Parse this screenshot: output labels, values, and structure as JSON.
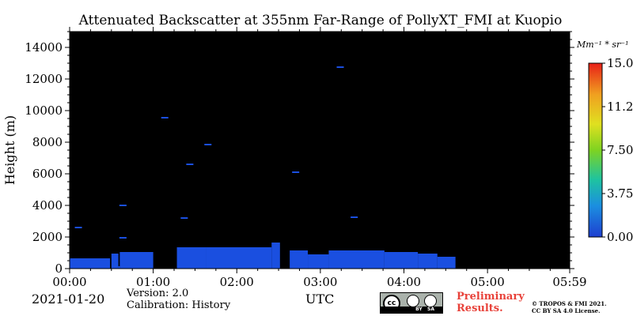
{
  "chart_data": {
    "type": "heatmap",
    "title": "Attenuated Backscatter at 355nm Far-Range of PollyXT_FMI at Kuopio",
    "xlabel": "UTC",
    "ylabel": "Height (m)",
    "x_ticks": [
      "00:00",
      "01:00",
      "02:00",
      "03:00",
      "04:00",
      "05:00",
      "05:59"
    ],
    "x_range_minutes": [
      0,
      359
    ],
    "y_ticks": [
      0,
      2000,
      4000,
      6000,
      8000,
      10000,
      12000,
      14000
    ],
    "ylim": [
      0,
      15000
    ],
    "colorbar": {
      "unit_label": "Mm⁻¹ * sr⁻¹",
      "range": [
        0.0,
        15.0
      ],
      "ticks": [
        "0.00",
        "3.75",
        "7.50",
        "11.25",
        "15.00"
      ]
    },
    "background_color": "#000000",
    "signal_color": "#1a4fe0",
    "aerosol_layers": [
      {
        "start": "00:00",
        "end": "00:29",
        "top_m": 650
      },
      {
        "start": "00:30",
        "end": "00:35",
        "top_m": 950
      },
      {
        "start": "00:36",
        "end": "01:00",
        "top_m": 1050
      },
      {
        "start": "00:35",
        "end": "00:36",
        "top_m": 150
      },
      {
        "start": "01:17",
        "end": "01:38",
        "top_m": 1350
      },
      {
        "start": "01:38",
        "end": "02:25",
        "top_m": 1350
      },
      {
        "start": "02:25",
        "end": "02:31",
        "top_m": 1650
      },
      {
        "start": "02:38",
        "end": "02:51",
        "top_m": 1150
      },
      {
        "start": "02:51",
        "end": "03:06",
        "top_m": 900
      },
      {
        "start": "03:06",
        "end": "03:46",
        "top_m": 1150
      },
      {
        "start": "03:46",
        "end": "04:10",
        "top_m": 1050
      },
      {
        "start": "04:10",
        "end": "04:24",
        "top_m": 950
      },
      {
        "start": "04:24",
        "end": "04:37",
        "top_m": 750
      }
    ],
    "cloud_specks": [
      {
        "time": "00:06",
        "height_m": 2600
      },
      {
        "time": "00:38",
        "height_m": 4000
      },
      {
        "time": "00:38",
        "height_m": 1950
      },
      {
        "time": "01:08",
        "height_m": 9550
      },
      {
        "time": "01:22",
        "height_m": 3200
      },
      {
        "time": "01:26",
        "height_m": 6600
      },
      {
        "time": "01:39",
        "height_m": 7850
      },
      {
        "time": "02:42",
        "height_m": 6100
      },
      {
        "time": "03:14",
        "height_m": 12750
      },
      {
        "time": "03:24",
        "height_m": 3250
      }
    ]
  },
  "footer": {
    "date": "2021-01-20",
    "version": "Version: 2.0",
    "calibration": "Calibration: History",
    "preliminary_line1": "Preliminary",
    "preliminary_line2": "Results.",
    "license_line1": "© TROPOS & FMI 2021.",
    "license_line2": "CC BY SA 4.0 License."
  }
}
